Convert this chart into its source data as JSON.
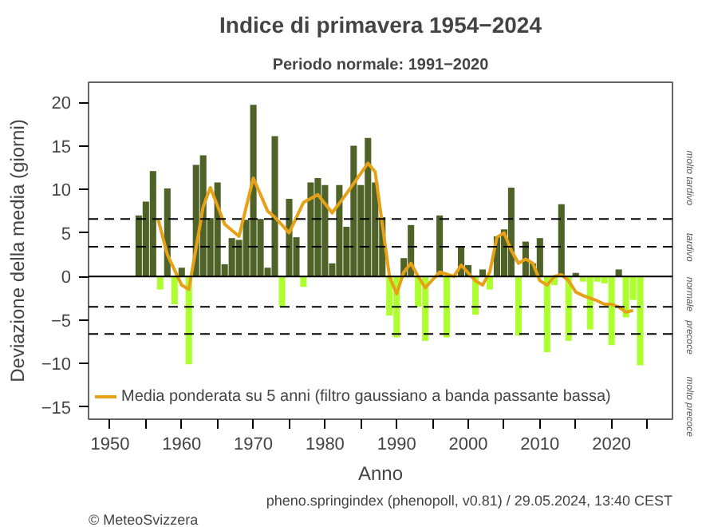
{
  "chart_data": {
    "type": "bar",
    "title": "Indice di primavera 1954−2024",
    "subtitle": "Periodo normale: 1991−2020",
    "xlabel": "Anno",
    "ylabel": "Deviazione della media (giorni)",
    "x": [
      1954,
      1955,
      1956,
      1957,
      1958,
      1959,
      1960,
      1961,
      1962,
      1963,
      1964,
      1965,
      1966,
      1967,
      1968,
      1969,
      1970,
      1971,
      1972,
      1973,
      1974,
      1975,
      1976,
      1977,
      1978,
      1979,
      1980,
      1981,
      1982,
      1983,
      1984,
      1985,
      1986,
      1987,
      1988,
      1989,
      1990,
      1991,
      1992,
      1993,
      1994,
      1995,
      1996,
      1997,
      1998,
      1999,
      2000,
      2001,
      2002,
      2003,
      2004,
      2005,
      2006,
      2007,
      2008,
      2009,
      2010,
      2011,
      2012,
      2013,
      2014,
      2015,
      2016,
      2017,
      2018,
      2019,
      2020,
      2021,
      2022,
      2023,
      2024
    ],
    "series": [
      {
        "values": [
          7.0,
          8.6,
          12.1,
          -1.5,
          10.1,
          -3.2,
          1.0,
          -10.1,
          12.8,
          13.9,
          6.7,
          10.8,
          1.4,
          4.4,
          4.2,
          6.5,
          19.7,
          6.6,
          1.0,
          16.1,
          -3.5,
          8.9,
          4.5,
          -1.2,
          10.8,
          11.3,
          10.5,
          1.5,
          10.5,
          5.7,
          15.0,
          10.5,
          15.9,
          10.8,
          6.8,
          -4.5,
          -7.0,
          2.1,
          5.9,
          -3.5,
          -7.4,
          null,
          7.0,
          -7.0,
          null,
          3.4,
          1.3,
          -4.4,
          0.8,
          -1.5,
          4.6,
          5.4,
          10.2,
          -6.8,
          4.0,
          1.5,
          4.4,
          -8.7,
          -1.0,
          8.3,
          -7.4,
          0.4,
          -0.6,
          -6.1,
          -0.6,
          -0.8,
          -7.9,
          0.8,
          -4.7,
          -2.7,
          -10.2
        ],
        "colors": [
          "#4f6228",
          "#4f6228",
          "#4f6228",
          "#adff2f",
          "#4f6228",
          "#adff2f",
          "#4f6228",
          "#adff2f",
          "#4f6228",
          "#4f6228",
          "#4f6228",
          "#4f6228",
          "#4f6228",
          "#4f6228",
          "#4f6228",
          "#4f6228",
          "#4f6228",
          "#4f6228",
          "#4f6228",
          "#4f6228",
          "#adff2f",
          "#4f6228",
          "#4f6228",
          "#adff2f",
          "#4f6228",
          "#4f6228",
          "#4f6228",
          "#4f6228",
          "#4f6228",
          "#4f6228",
          "#4f6228",
          "#4f6228",
          "#4f6228",
          "#4f6228",
          "#4f6228",
          "#adff2f",
          "#adff2f",
          "#4f6228",
          "#4f6228",
          "#adff2f",
          "#adff2f",
          "#adff2f",
          "#4f6228",
          "#adff2f",
          "#4f6228",
          "#4f6228",
          "#4f6228",
          "#adff2f",
          "#4f6228",
          "#adff2f",
          "#4f6228",
          "#4f6228",
          "#4f6228",
          "#adff2f",
          "#4f6228",
          "#4f6228",
          "#4f6228",
          "#adff2f",
          "#adff2f",
          "#4f6228",
          "#adff2f",
          "#4f6228",
          "#adff2f",
          "#adff2f",
          "#adff2f",
          "#adff2f",
          "#adff2f",
          "#4f6228",
          "#adff2f",
          "#adff2f",
          "#adff2f"
        ]
      },
      {
        "type": "line",
        "name": "Media ponderata su 5 anni (filtro gaussiano a banda passante bassa)",
        "color": "#e6a117",
        "x": [
          1956.7,
          1958,
          1960,
          1961,
          1963,
          1964,
          1966,
          1968,
          1970,
          1972,
          1973,
          1975,
          1977,
          1979,
          1981,
          1983,
          1986,
          1987,
          1988,
          1989,
          1990,
          1991,
          1992,
          1993,
          1994,
          1996,
          1998,
          1999,
          2001,
          2002,
          2003,
          2004,
          2005,
          2006,
          2007,
          2008,
          2009,
          2010,
          2011,
          2012,
          2013,
          2014,
          2015,
          2016,
          2017,
          2018,
          2019,
          2020,
          2021,
          2022,
          2023
        ],
        "values": [
          6.6,
          2.5,
          -1.0,
          -1.5,
          8.0,
          10.2,
          6.0,
          4.6,
          11.3,
          7.5,
          6.8,
          5.0,
          8.5,
          9.4,
          7.3,
          9.5,
          13.0,
          12.0,
          6.0,
          0.0,
          -2.0,
          0.5,
          1.5,
          0.0,
          -1.3,
          0.5,
          0.0,
          1.3,
          -0.5,
          -1.0,
          0.5,
          4.5,
          5.0,
          3.0,
          1.5,
          2.0,
          1.5,
          -0.5,
          -1.0,
          0.0,
          0.2,
          -0.5,
          -1.8,
          -2.2,
          -2.5,
          -2.8,
          -3.2,
          -3.2,
          -3.5,
          -4.1,
          -3.9
        ]
      }
    ],
    "xlim": [
      1947,
      2028.5
    ],
    "xticks": [
      1950,
      {
        "value": 1955,
        "label": null
      },
      1960,
      {
        "value": 1965,
        "label": null
      },
      1970,
      {
        "value": 1975,
        "label": null
      },
      1980,
      {
        "value": 1985,
        "label": null
      },
      1990,
      {
        "value": 1995,
        "label": null
      },
      2000,
      {
        "value": 2005,
        "label": null
      },
      2010,
      {
        "value": 2015,
        "label": null
      },
      2020,
      {
        "value": 2025,
        "label": null
      }
    ],
    "ylim": [
      -16.4,
      22.3
    ],
    "yticks": [
      {
        "value": -15,
        "label": "−15"
      },
      {
        "value": -10,
        "label": "−10"
      },
      {
        "value": -5,
        "label": "−5"
      },
      0,
      5,
      10,
      15,
      20
    ],
    "ref_lines": [
      {
        "axis": "y",
        "value": 0,
        "line_style": "solid",
        "color": "#000000"
      },
      {
        "axis": "y",
        "value": 6.6,
        "line_style": "dashed",
        "color": "#000000"
      },
      {
        "axis": "y",
        "value": 3.4,
        "line_style": "dashed",
        "color": "#000000"
      },
      {
        "axis": "y",
        "value": -3.5,
        "line_style": "dashed",
        "color": "#000000"
      },
      {
        "axis": "y",
        "value": -6.6,
        "line_style": "dashed",
        "color": "#000000"
      }
    ],
    "annotations": [
      "molto tardivo",
      "tardivo",
      "normale",
      "precoce",
      "molto precoce",
      "© MeteoSvizzera",
      "pheno.springindex (phenopoll, v0.81) / 29.05.2024, 13:40 CEST"
    ],
    "legend": "bottom left",
    "grid": false
  }
}
